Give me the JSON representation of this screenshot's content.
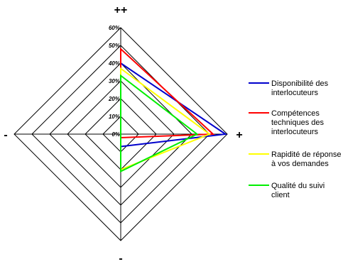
{
  "chart_data": {
    "type": "radar",
    "axes": [
      "++",
      "+",
      "-",
      "-"
    ],
    "rlim": [
      0,
      60
    ],
    "ticks": [
      "0%",
      "10%",
      "20%",
      "30%",
      "40%",
      "50%",
      "60%"
    ],
    "series": [
      {
        "name": "Disponibilité des interlocuteurs",
        "color": "#0000cc",
        "values": [
          40,
          59,
          7,
          0
        ]
      },
      {
        "name": "Compétences techniques des interlocuteurs",
        "color": "#ff0000",
        "values": [
          48,
          52,
          2,
          0
        ]
      },
      {
        "name": "Rapidité de réponse à vos demandes",
        "color": "#ffff00",
        "values": [
          37,
          50,
          20,
          0
        ]
      },
      {
        "name": "Qualité du suivi client",
        "color": "#00ee00",
        "values": [
          33,
          43,
          21,
          0
        ]
      }
    ],
    "grid": true,
    "legend": "right"
  }
}
